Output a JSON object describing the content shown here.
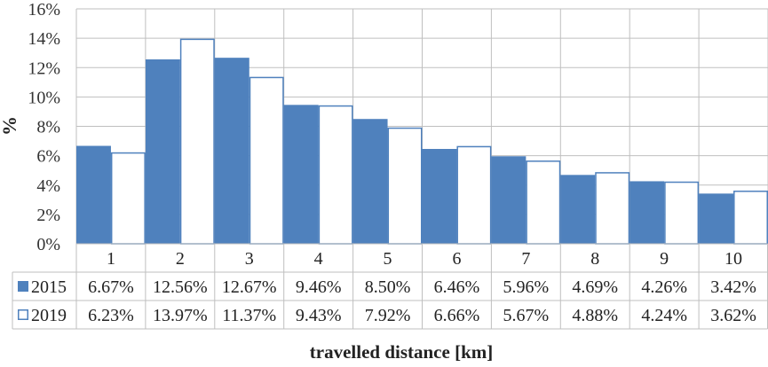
{
  "chart_data": {
    "type": "bar",
    "categories": [
      "1",
      "2",
      "3",
      "4",
      "5",
      "6",
      "7",
      "8",
      "9",
      "10"
    ],
    "series": [
      {
        "name": "2015",
        "values": [
          6.67,
          12.56,
          12.67,
          9.46,
          8.5,
          6.46,
          5.96,
          4.69,
          4.26,
          3.42
        ],
        "labels": [
          "6.67%",
          "12.56%",
          "12.67%",
          "9.46%",
          "8.50%",
          "6.46%",
          "5.96%",
          "4.69%",
          "4.26%",
          "3.42%"
        ],
        "color": "#4f81bd",
        "fill": "solid"
      },
      {
        "name": "2019",
        "values": [
          6.23,
          13.97,
          11.37,
          9.43,
          7.92,
          6.66,
          5.67,
          4.88,
          4.24,
          3.62
        ],
        "labels": [
          "6.23%",
          "13.97%",
          "11.37%",
          "9.43%",
          "7.92%",
          "6.66%",
          "5.67%",
          "4.88%",
          "4.24%",
          "3.62%"
        ],
        "color": "#4f81bd",
        "fill": "outline"
      }
    ],
    "ylabel": "%",
    "xlabel": "travelled distance [km]",
    "ylim": [
      0,
      16
    ],
    "yticks": [
      "0%",
      "2%",
      "4%",
      "6%",
      "8%",
      "10%",
      "12%",
      "14%",
      "16%"
    ],
    "grid": true,
    "legend": "data-table",
    "axis_color": "#bfbfbf"
  }
}
